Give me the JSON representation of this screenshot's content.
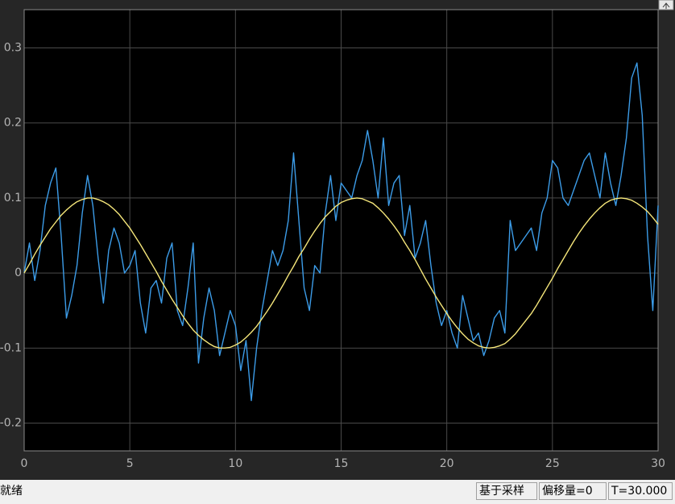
{
  "chart_data": {
    "type": "line",
    "x": [
      0,
      0.25,
      0.5,
      0.75,
      1,
      1.25,
      1.5,
      1.75,
      2,
      2.25,
      2.5,
      2.75,
      3,
      3.25,
      3.5,
      3.75,
      4,
      4.25,
      4.5,
      4.75,
      5,
      5.25,
      5.5,
      5.75,
      6,
      6.25,
      6.5,
      6.75,
      7,
      7.25,
      7.5,
      7.75,
      8,
      8.25,
      8.5,
      8.75,
      9,
      9.25,
      9.5,
      9.75,
      10,
      10.25,
      10.5,
      10.75,
      11,
      11.25,
      11.5,
      11.75,
      12,
      12.25,
      12.5,
      12.75,
      13,
      13.25,
      13.5,
      13.75,
      14,
      14.25,
      14.5,
      14.75,
      15,
      15.25,
      15.5,
      15.75,
      16,
      16.25,
      16.5,
      16.75,
      17,
      17.25,
      17.5,
      17.75,
      18,
      18.25,
      18.5,
      18.75,
      19,
      19.25,
      19.5,
      19.75,
      20,
      20.25,
      20.5,
      20.75,
      21,
      21.25,
      21.5,
      21.75,
      22,
      22.25,
      22.5,
      22.75,
      23,
      23.25,
      23.5,
      23.75,
      24,
      24.25,
      24.5,
      24.75,
      25,
      25.25,
      25.5,
      25.75,
      26,
      26.25,
      26.5,
      26.75,
      27,
      27.25,
      27.5,
      27.75,
      28,
      28.25,
      28.5,
      28.75,
      29,
      29.25,
      29.5,
      29.75,
      30
    ],
    "series": [
      {
        "color": "#3c9ce8",
        "values": [
          0,
          0.04,
          -0.01,
          0.03,
          0.09,
          0.12,
          0.14,
          0.05,
          -0.06,
          -0.03,
          0.01,
          0.08,
          0.13,
          0.09,
          0.02,
          -0.04,
          0.03,
          0.06,
          0.04,
          0,
          0.01,
          0.03,
          -0.04,
          -0.08,
          -0.02,
          -0.01,
          -0.04,
          0.02,
          0.04,
          -0.05,
          -0.07,
          -0.02,
          0.04,
          -0.12,
          -0.06,
          -0.02,
          -0.05,
          -0.11,
          -0.08,
          -0.05,
          -0.07,
          -0.13,
          -0.09,
          -0.17,
          -0.1,
          -0.05,
          -0.01,
          0.03,
          0.01,
          0.03,
          0.07,
          0.16,
          0.07,
          -0.02,
          -0.05,
          0.01,
          0,
          0.08,
          0.13,
          0.07,
          0.12,
          0.11,
          0.1,
          0.13,
          0.15,
          0.19,
          0.15,
          0.1,
          0.18,
          0.09,
          0.12,
          0.13,
          0.05,
          0.09,
          0.02,
          0.04,
          0.07,
          0.01,
          -0.04,
          -0.07,
          -0.05,
          -0.08,
          -0.1,
          -0.03,
          -0.06,
          -0.09,
          -0.08,
          -0.11,
          -0.09,
          -0.06,
          -0.05,
          -0.08,
          0.07,
          0.03,
          0.04,
          0.05,
          0.06,
          0.03,
          0.08,
          0.1,
          0.15,
          0.14,
          0.1,
          0.09,
          0.11,
          0.13,
          0.15,
          0.16,
          0.13,
          0.1,
          0.16,
          0.12,
          0.09,
          0.13,
          0.18,
          0.26,
          0.28,
          0.21,
          0.05,
          -0.05,
          0.09
        ]
      },
      {
        "color": "#f5e67a",
        "values": [
          0,
          0.012,
          0.025,
          0.037,
          0.048,
          0.059,
          0.068,
          0.077,
          0.084,
          0.09,
          0.095,
          0.098,
          0.1,
          0.1,
          0.098,
          0.095,
          0.091,
          0.085,
          0.078,
          0.069,
          0.06,
          0.049,
          0.038,
          0.026,
          0.014,
          0.002,
          -0.011,
          -0.023,
          -0.035,
          -0.046,
          -0.057,
          -0.067,
          -0.076,
          -0.083,
          -0.089,
          -0.094,
          -0.098,
          -0.1,
          -0.1,
          -0.099,
          -0.096,
          -0.092,
          -0.086,
          -0.079,
          -0.071,
          -0.061,
          -0.051,
          -0.04,
          -0.028,
          -0.016,
          -0.003,
          0.009,
          0.022,
          0.033,
          0.045,
          0.056,
          0.066,
          0.075,
          0.082,
          0.089,
          0.094,
          0.097,
          0.099,
          0.1,
          0.099,
          0.096,
          0.093,
          0.087,
          0.08,
          0.072,
          0.063,
          0.053,
          0.041,
          0.03,
          0.018,
          0.005,
          -0.008,
          -0.02,
          -0.032,
          -0.043,
          -0.054,
          -0.064,
          -0.073,
          -0.081,
          -0.088,
          -0.093,
          -0.097,
          -0.099,
          -0.1,
          -0.099,
          -0.097,
          -0.094,
          -0.088,
          -0.081,
          -0.072,
          -0.063,
          -0.054,
          -0.043,
          -0.031,
          -0.019,
          -0.007,
          0.006,
          0.018,
          0.03,
          0.042,
          0.053,
          0.063,
          0.072,
          0.08,
          0.087,
          0.093,
          0.097,
          0.099,
          0.1,
          0.099,
          0.097,
          0.093,
          0.088,
          0.082,
          0.074,
          0.065
        ]
      }
    ],
    "xlim": [
      0,
      30
    ],
    "xticks": [
      0,
      5,
      10,
      15,
      20,
      25,
      30
    ],
    "ylim": [
      -0.237,
      0.351
    ],
    "yticks": [
      -0.2,
      -0.1,
      0,
      0.1,
      0.2,
      0.3
    ],
    "grid": true,
    "background": "#000000"
  },
  "status_bar": {
    "status": "就绪",
    "mode": "基于采样",
    "offset": "偏移量=0",
    "time": "T=30.000"
  }
}
